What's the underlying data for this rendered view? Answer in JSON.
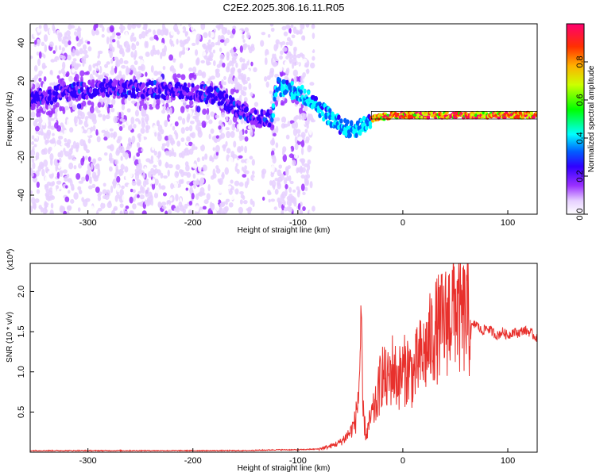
{
  "title": "C2E2.2025.306.16.11.R05",
  "chart_data": [
    {
      "type": "heatmap",
      "xlabel": "Height of straight line (km)",
      "ylabel": "Frequency (Hz)",
      "xlim": [
        -355,
        128
      ],
      "ylim": [
        -50,
        50
      ],
      "xticks": [
        -300,
        -200,
        -100,
        0,
        100
      ],
      "yticks": [
        -40,
        -20,
        0,
        20,
        40
      ],
      "grid": false,
      "colorbar": {
        "label": "Normalized spectral amplitude",
        "range": [
          0,
          1
        ],
        "ticks": [
          "0.0",
          "0.2",
          "0.4",
          "0.6",
          "0.8"
        ],
        "tick_values": [
          0.0,
          0.2,
          0.4,
          0.6,
          0.8
        ],
        "colors": [
          "#ffffff",
          "#cc99ff",
          "#7a00ff",
          "#0000ff",
          "#00ffff",
          "#00ff00",
          "#ffff00",
          "#ff8000",
          "#ff0000",
          "#ff0080"
        ]
      },
      "ridge": {
        "description_points_x": [
          -355,
          -320,
          -290,
          -260,
          -230,
          -200,
          -175,
          -150,
          -135,
          -125,
          -120,
          -110,
          -100,
          -90,
          -80,
          -70,
          -60,
          -50,
          -40,
          -30,
          -20,
          -10,
          0,
          20,
          40,
          60,
          90,
          128
        ],
        "description_points_y": [
          10,
          14,
          16,
          16,
          15,
          14,
          12,
          2,
          0,
          0,
          17,
          16,
          14,
          11,
          6,
          1,
          -3,
          -6,
          -4,
          0,
          1,
          2,
          2,
          2,
          2,
          2,
          2,
          2
        ]
      }
    },
    {
      "type": "line",
      "xlabel": "Height of straight line (km)",
      "ylabel": "SNR (10 * v/v)",
      "multiplier_label": "(x10",
      "multiplier_exp": "4",
      "xlim": [
        -355,
        128
      ],
      "ylim": [
        0,
        2.35
      ],
      "xticks": [
        -300,
        -200,
        -100,
        0,
        100
      ],
      "yticks": [
        0.5,
        1.0,
        1.5,
        2.0
      ],
      "ytick_labels": [
        "0.5",
        "1.0",
        "1.5",
        "2.0"
      ],
      "color": "#e8302c",
      "grid": false,
      "series": [
        {
          "x": [
            -355,
            -300,
            -250,
            -200,
            -150,
            -120,
            -100,
            -80,
            -70,
            -60,
            -55,
            -50,
            -45,
            -42,
            -40,
            -38,
            -35,
            -30,
            -25,
            -20,
            -15,
            -10,
            -5,
            0,
            5,
            10,
            15,
            20,
            25,
            30,
            35,
            40,
            45,
            50,
            55,
            60,
            65,
            70,
            75,
            80,
            85,
            90,
            95,
            100,
            105,
            110,
            115,
            120,
            128
          ],
          "y": [
            0.02,
            0.02,
            0.02,
            0.02,
            0.02,
            0.03,
            0.03,
            0.04,
            0.07,
            0.12,
            0.18,
            0.25,
            0.4,
            0.75,
            1.5,
            0.5,
            0.2,
            0.45,
            0.6,
            1.0,
            0.85,
            1.05,
            0.9,
            1.0,
            1.05,
            0.95,
            1.15,
            1.2,
            1.35,
            1.5,
            1.55,
            1.6,
            1.75,
            1.85,
            1.65,
            1.7,
            1.55,
            1.6,
            1.5,
            1.55,
            1.5,
            1.45,
            1.5,
            1.45,
            1.5,
            1.48,
            1.52,
            1.5,
            1.42
          ]
        }
      ]
    }
  ]
}
